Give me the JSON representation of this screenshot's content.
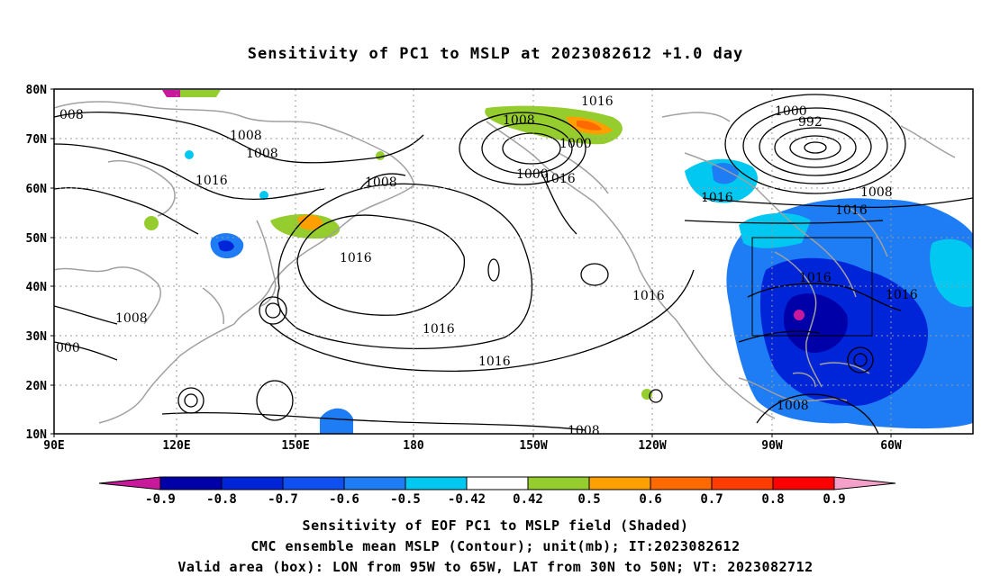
{
  "title": "Sensitivity of PC1 to MSLP at 2023082612 +1.0 day",
  "lat_labels": [
    "80N",
    "70N",
    "60N",
    "50N",
    "40N",
    "30N",
    "20N",
    "10N"
  ],
  "lon_labels": [
    "90E",
    "120E",
    "150E",
    "180",
    "150W",
    "120W",
    "90W",
    "60W"
  ],
  "contour_labels": [
    "008",
    "1008",
    "1008",
    "1016",
    "1008",
    "1016",
    "1008",
    "1000",
    "1000",
    "1016",
    "1016",
    "1000",
    "992",
    "1016",
    "1008",
    "1016",
    "1016",
    "1016",
    "1016",
    "1016",
    "1008",
    "1008",
    "000"
  ],
  "colorbar": {
    "labels": [
      "-0.9",
      "-0.8",
      "-0.7",
      "-0.6",
      "-0.5",
      "-0.42",
      "0.42",
      "0.5",
      "0.6",
      "0.7",
      "0.8",
      "0.9"
    ],
    "colors": [
      "#0000a8",
      "#0024d8",
      "#1050f0",
      "#1e7cf5",
      "#00c8f0",
      "#ffffff",
      "#96cd2e",
      "#ffa000",
      "#ff6a00",
      "#ff3c00",
      "#ff0000"
    ],
    "low_end_color": "#c8199c",
    "high_end_color": "#f5a0c8"
  },
  "captions": [
    "Sensitivity of EOF PC1 to MSLP field (Shaded)",
    "CMC ensemble mean MSLP (Contour); unit(mb); IT:2023082612",
    "Valid area (box): LON from 95W to 65W, LAT from 30N to 50N; VT: 2023082712"
  ]
}
